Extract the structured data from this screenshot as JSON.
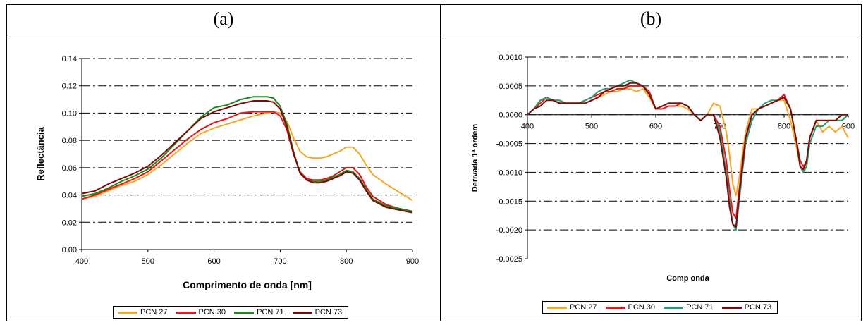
{
  "panels": [
    {
      "label": "(a)"
    },
    {
      "label": "(b)"
    }
  ],
  "chart_data": [
    {
      "type": "line",
      "title": "",
      "xlabel": "Comprimento de onda [nm]",
      "ylabel": "Reflectância",
      "xlim": [
        400,
        900
      ],
      "ylim": [
        0,
        0.14
      ],
      "xticks": [
        "400",
        "500",
        "600",
        "700",
        "800",
        "900"
      ],
      "yticks": [
        "0.00",
        "0.02",
        "0.04",
        "0.06",
        "0.08",
        "0.10",
        "0.12",
        "0.14"
      ],
      "grid": "horizontal dashed",
      "legend_position": "bottom",
      "series": [
        {
          "name": "PCN 27",
          "color": "#f5a623",
          "x": [
            400,
            420,
            440,
            460,
            480,
            500,
            520,
            540,
            560,
            580,
            600,
            620,
            640,
            660,
            680,
            690,
            700,
            710,
            720,
            730,
            740,
            750,
            760,
            770,
            780,
            790,
            800,
            810,
            820,
            830,
            840,
            860,
            880,
            900
          ],
          "y": [
            0.037,
            0.039,
            0.043,
            0.047,
            0.05,
            0.055,
            0.062,
            0.07,
            0.078,
            0.085,
            0.089,
            0.092,
            0.095,
            0.098,
            0.1,
            0.101,
            0.1,
            0.094,
            0.082,
            0.072,
            0.068,
            0.067,
            0.067,
            0.068,
            0.07,
            0.072,
            0.075,
            0.075,
            0.07,
            0.062,
            0.055,
            0.048,
            0.042,
            0.036
          ]
        },
        {
          "name": "PCN 30",
          "color": "#e8161b",
          "x": [
            400,
            420,
            440,
            460,
            480,
            500,
            520,
            540,
            560,
            580,
            600,
            620,
            640,
            660,
            680,
            690,
            700,
            710,
            720,
            730,
            740,
            750,
            760,
            770,
            780,
            790,
            800,
            810,
            820,
            830,
            840,
            860,
            880,
            900
          ],
          "y": [
            0.037,
            0.04,
            0.044,
            0.048,
            0.052,
            0.057,
            0.065,
            0.073,
            0.081,
            0.088,
            0.093,
            0.096,
            0.1,
            0.101,
            0.101,
            0.101,
            0.098,
            0.088,
            0.07,
            0.057,
            0.052,
            0.051,
            0.051,
            0.052,
            0.054,
            0.057,
            0.06,
            0.06,
            0.055,
            0.046,
            0.039,
            0.033,
            0.03,
            0.028
          ]
        },
        {
          "name": "PCN 71",
          "color": "#1a8a1a",
          "x": [
            400,
            420,
            440,
            460,
            480,
            500,
            520,
            540,
            560,
            580,
            600,
            620,
            640,
            660,
            680,
            690,
            700,
            710,
            720,
            730,
            740,
            750,
            760,
            770,
            780,
            790,
            800,
            810,
            820,
            830,
            840,
            860,
            880,
            900
          ],
          "y": [
            0.039,
            0.041,
            0.045,
            0.05,
            0.054,
            0.059,
            0.067,
            0.077,
            0.087,
            0.097,
            0.104,
            0.106,
            0.11,
            0.112,
            0.112,
            0.111,
            0.105,
            0.092,
            0.072,
            0.056,
            0.051,
            0.05,
            0.05,
            0.051,
            0.053,
            0.055,
            0.058,
            0.057,
            0.052,
            0.044,
            0.037,
            0.032,
            0.03,
            0.028
          ]
        },
        {
          "name": "PCN 73",
          "color": "#7a0a0a",
          "x": [
            400,
            420,
            440,
            460,
            480,
            500,
            520,
            540,
            560,
            580,
            600,
            620,
            640,
            660,
            680,
            690,
            700,
            710,
            720,
            730,
            740,
            750,
            760,
            770,
            780,
            790,
            800,
            810,
            820,
            830,
            840,
            860,
            880,
            900
          ],
          "y": [
            0.041,
            0.043,
            0.048,
            0.052,
            0.056,
            0.061,
            0.069,
            0.078,
            0.087,
            0.096,
            0.101,
            0.104,
            0.107,
            0.109,
            0.109,
            0.108,
            0.103,
            0.09,
            0.071,
            0.056,
            0.051,
            0.049,
            0.049,
            0.05,
            0.052,
            0.054,
            0.057,
            0.056,
            0.051,
            0.043,
            0.036,
            0.031,
            0.029,
            0.027
          ]
        }
      ]
    },
    {
      "type": "line",
      "title": "",
      "xlabel": "Comp onda",
      "ylabel": "Derivada 1ª ordem",
      "xlim": [
        400,
        900
      ],
      "ylim": [
        -0.0025,
        0.001
      ],
      "xticks": [
        "400",
        "500",
        "600",
        "700",
        "800",
        "900"
      ],
      "yticks": [
        "0.0010",
        "0.0005",
        "0.0000",
        "-0.0005",
        "-0.0010",
        "-0.0015",
        "-0.0020",
        "-0.0025"
      ],
      "grid": "horizontal dashed",
      "legend_position": "bottom",
      "series": [
        {
          "name": "PCN 27",
          "color": "#f5a623",
          "x": [
            400,
            410,
            420,
            430,
            440,
            450,
            460,
            470,
            480,
            490,
            500,
            510,
            520,
            530,
            540,
            550,
            560,
            570,
            580,
            590,
            600,
            610,
            620,
            630,
            640,
            650,
            660,
            670,
            680,
            690,
            700,
            710,
            715,
            720,
            725,
            730,
            740,
            750,
            760,
            770,
            780,
            790,
            800,
            810,
            820,
            825,
            830,
            835,
            840,
            850,
            860,
            870,
            880,
            890,
            900
          ],
          "y": [
            0.0,
            0.0001,
            0.00025,
            0.0003,
            0.00025,
            0.00025,
            0.0002,
            0.0002,
            0.0002,
            0.0002,
            0.00025,
            0.0003,
            0.00035,
            0.0004,
            0.0004,
            0.00045,
            0.00045,
            0.0004,
            0.00045,
            0.0003,
            0.0001,
            0.0001,
            0.00015,
            0.00015,
            0.00015,
            0.0001,
            0.0,
            -0.0001,
            0.0,
            0.0002,
            0.00015,
            -0.0003,
            -0.0007,
            -0.0012,
            -0.0014,
            -0.0011,
            -0.0003,
            0.0001,
            0.0001,
            0.00015,
            0.0002,
            0.00025,
            0.00025,
            -0.0001,
            -0.0006,
            -0.0009,
            -0.001,
            -0.0008,
            -0.0004,
            -0.0001,
            -0.0003,
            -0.0002,
            -0.0003,
            -0.0002,
            -0.0004
          ]
        },
        {
          "name": "PCN 30",
          "color": "#e8161b",
          "x": [
            400,
            410,
            420,
            430,
            440,
            450,
            460,
            470,
            480,
            490,
            500,
            510,
            520,
            530,
            540,
            550,
            560,
            570,
            580,
            590,
            600,
            610,
            620,
            630,
            640,
            650,
            660,
            670,
            680,
            690,
            700,
            710,
            715,
            720,
            725,
            730,
            740,
            750,
            760,
            770,
            780,
            790,
            800,
            810,
            820,
            825,
            830,
            835,
            840,
            850,
            860,
            870,
            880,
            890,
            900
          ],
          "y": [
            0.0,
            0.0001,
            0.0002,
            0.0003,
            0.00025,
            0.0002,
            0.0002,
            0.0002,
            0.0002,
            0.00025,
            0.0003,
            0.00035,
            0.0004,
            0.0004,
            0.00045,
            0.00045,
            0.0005,
            0.0005,
            0.0005,
            0.0004,
            0.0001,
            0.0001,
            0.00015,
            0.00015,
            0.0002,
            0.00015,
            0.0,
            -0.0001,
            0.0,
            0.0,
            -0.0002,
            -0.0008,
            -0.0013,
            -0.0017,
            -0.0018,
            -0.0013,
            -0.0004,
            0.0,
            0.0001,
            0.00015,
            0.0002,
            0.00025,
            0.00035,
            0.0001,
            -0.0005,
            -0.0008,
            -0.0009,
            -0.0008,
            -0.0004,
            -0.0001,
            -0.0001,
            -0.0001,
            -0.0001,
            -0.0001,
            0.0
          ]
        },
        {
          "name": "PCN 71",
          "color": "#2a9d6f",
          "x": [
            400,
            410,
            420,
            430,
            440,
            450,
            460,
            470,
            480,
            490,
            500,
            510,
            520,
            530,
            540,
            550,
            560,
            570,
            580,
            590,
            600,
            610,
            620,
            630,
            640,
            650,
            660,
            670,
            680,
            690,
            700,
            710,
            715,
            720,
            725,
            730,
            740,
            750,
            760,
            770,
            780,
            790,
            800,
            810,
            820,
            825,
            830,
            835,
            840,
            850,
            860,
            870,
            880,
            890,
            900
          ],
          "y": [
            0.0,
            0.0001,
            0.00025,
            0.0003,
            0.00025,
            0.00025,
            0.0002,
            0.0002,
            0.0002,
            0.00025,
            0.0003,
            0.0004,
            0.00045,
            0.00045,
            0.0005,
            0.00055,
            0.0006,
            0.00055,
            0.0005,
            0.00035,
            0.0001,
            0.00015,
            0.0002,
            0.0002,
            0.0002,
            0.00015,
            0.0,
            -0.0001,
            0.0,
            0.0,
            -0.0003,
            -0.001,
            -0.0015,
            -0.0019,
            -0.002,
            -0.0015,
            -0.0005,
            -0.0001,
            0.0001,
            0.0002,
            0.00025,
            0.00025,
            0.0003,
            0.0001,
            -0.0005,
            -0.0009,
            -0.001,
            -0.0009,
            -0.0005,
            -0.0002,
            -0.0002,
            -0.0001,
            -0.0001,
            -0.0001,
            0.0
          ]
        },
        {
          "name": "PCN 73",
          "color": "#7a0a0a",
          "x": [
            400,
            410,
            420,
            430,
            440,
            450,
            460,
            470,
            480,
            490,
            500,
            510,
            520,
            530,
            540,
            550,
            560,
            570,
            580,
            590,
            600,
            610,
            620,
            630,
            640,
            650,
            660,
            670,
            680,
            690,
            700,
            710,
            715,
            720,
            725,
            730,
            740,
            750,
            760,
            770,
            780,
            790,
            800,
            810,
            820,
            825,
            830,
            835,
            840,
            850,
            860,
            870,
            880,
            890,
            900
          ],
          "y": [
            0.0,
            0.0001,
            0.00015,
            0.00025,
            0.00025,
            0.0002,
            0.0002,
            0.0002,
            0.0002,
            0.0002,
            0.00025,
            0.0003,
            0.0004,
            0.00045,
            0.0005,
            0.0005,
            0.00055,
            0.00055,
            0.0005,
            0.00035,
            0.0001,
            0.00015,
            0.0002,
            0.0002,
            0.0002,
            0.00015,
            0.0,
            -0.0001,
            0.0,
            0.0,
            -0.0004,
            -0.0011,
            -0.0016,
            -0.0019,
            -0.00195,
            -0.0014,
            -0.0004,
            0.0,
            0.0001,
            0.00015,
            0.0002,
            0.00025,
            0.0003,
            0.0001,
            -0.0005,
            -0.0009,
            -0.00095,
            -0.0008,
            -0.0004,
            -0.0001,
            -0.0001,
            -0.0001,
            -0.0001,
            0.0,
            0.0
          ]
        }
      ]
    }
  ]
}
